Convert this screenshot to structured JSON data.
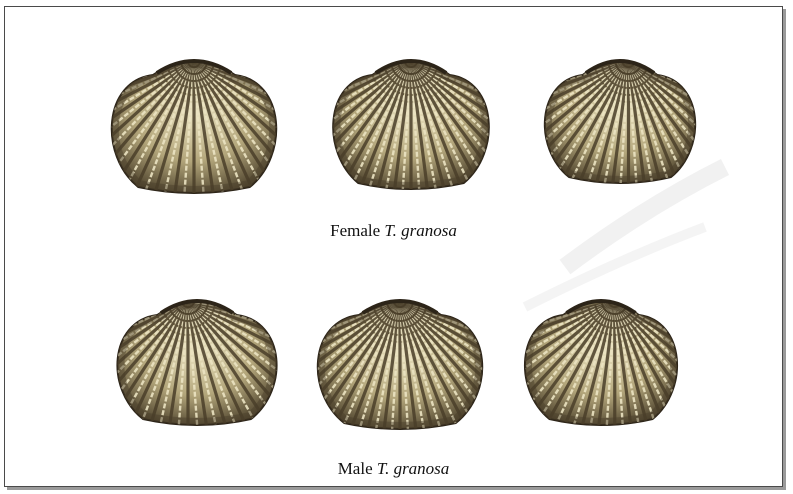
{
  "figure": {
    "female_caption": {
      "prefix": "Female ",
      "italic": "T. granosa"
    },
    "male_caption": {
      "prefix": "Male ",
      "italic": "T. granosa"
    },
    "colors": {
      "shell_light": "#ece4c2",
      "shell_mid": "#b3a67b",
      "shell_dark": "#4a3f2a",
      "shell_edge": "#2c2418",
      "frame_border": "#4a4a4a"
    }
  }
}
